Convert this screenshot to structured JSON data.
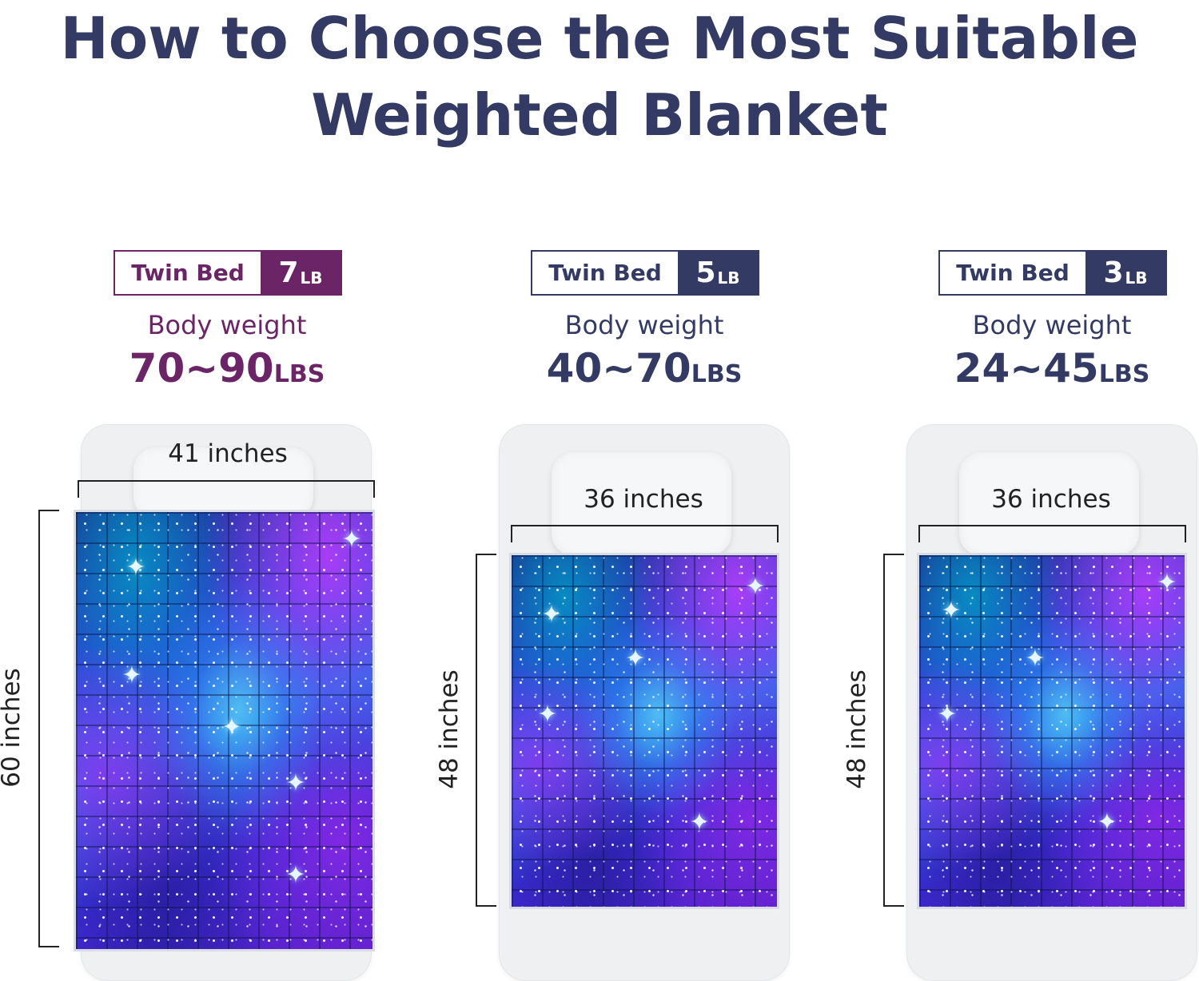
{
  "title": {
    "line1": "How to Choose the Most Suitable",
    "line2": "Weighted Blanket"
  },
  "colors": {
    "title": "#333a63",
    "purple": "#6b2466",
    "navy": "#333a63"
  },
  "options": [
    {
      "bed": "Twin Bed",
      "weight_num": "7",
      "weight_unit": "LB",
      "body_label": "Body weight",
      "range_num": "70~90",
      "range_unit": "LBS",
      "width_label": "41 inches",
      "height_label": "60 inches",
      "accent": "#6b2466"
    },
    {
      "bed": "Twin Bed",
      "weight_num": "5",
      "weight_unit": "LB",
      "body_label": "Body weight",
      "range_num": "40~70",
      "range_unit": "LBS",
      "width_label": "36 inches",
      "height_label": "48 inches",
      "accent": "#333a63"
    },
    {
      "bed": "Twin Bed",
      "weight_num": "3",
      "weight_unit": "LB",
      "body_label": "Body weight",
      "range_num": "24~45",
      "range_unit": "LBS",
      "width_label": "36 inches",
      "height_label": "48 inches",
      "accent": "#333a63"
    }
  ]
}
